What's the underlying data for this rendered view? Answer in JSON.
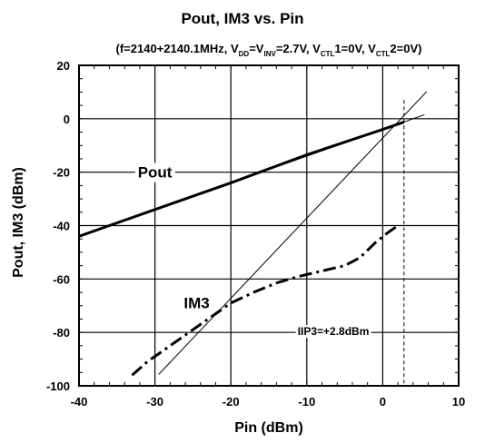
{
  "chart_data": {
    "type": "line",
    "title": "Pout, IM3 vs. Pin",
    "subtitle_parts": [
      {
        "text": "(f=2140+2140.1MHz, V",
        "sub": false
      },
      {
        "text": "DD",
        "sub": true
      },
      {
        "text": "=V",
        "sub": false
      },
      {
        "text": "INV",
        "sub": true
      },
      {
        "text": "=2.7V, V",
        "sub": false
      },
      {
        "text": "CTL",
        "sub": true
      },
      {
        "text": "1=0V, V",
        "sub": false
      },
      {
        "text": "CTL",
        "sub": true
      },
      {
        "text": "2=0V)",
        "sub": false
      }
    ],
    "xlabel": "Pin (dBm)",
    "ylabel": "Pout, IM3 (dBm)",
    "xlim": [
      -40,
      10
    ],
    "ylim": [
      -100,
      20
    ],
    "x_ticks": [
      -40,
      -30,
      -20,
      -10,
      0,
      10
    ],
    "y_ticks": [
      -100,
      -80,
      -60,
      -40,
      -20,
      0,
      20
    ],
    "grid": true,
    "series": [
      {
        "name": "Pout",
        "style": "solid-thick",
        "points": [
          [
            -40,
            -44
          ],
          [
            -30,
            -34
          ],
          [
            -20,
            -24
          ],
          [
            -10,
            -13.5
          ],
          [
            0,
            -4
          ],
          [
            2.8,
            -1.2
          ]
        ]
      },
      {
        "name": "IM3",
        "style": "dash-dot-thick",
        "points": [
          [
            -33,
            -96
          ],
          [
            -31,
            -91
          ],
          [
            -28,
            -85
          ],
          [
            -25,
            -79
          ],
          [
            -22,
            -73
          ],
          [
            -20,
            -69
          ],
          [
            -17,
            -65
          ],
          [
            -14,
            -61.5
          ],
          [
            -11,
            -59
          ],
          [
            -8,
            -57
          ],
          [
            -5,
            -55
          ],
          [
            -3,
            -52
          ],
          [
            -1,
            -46.5
          ],
          [
            0.5,
            -43
          ],
          [
            2,
            -40
          ]
        ]
      }
    ],
    "extrapolation_lines": [
      {
        "slope": 1,
        "x_range": [
          -40,
          5.5
        ],
        "points": [
          [
            -40,
            -44
          ],
          [
            5.5,
            1.5
          ]
        ]
      },
      {
        "slope": 3,
        "x_range": [
          -29.5,
          5.8
        ],
        "points": [
          [
            -29.5,
            -95.7
          ],
          [
            5.8,
            10.2
          ]
        ]
      }
    ],
    "iip3_marker": {
      "x": 2.8,
      "y_top": 7,
      "label": "IIP3=+2.8dBm",
      "label_pos": [
        -6.5,
        -81
      ]
    },
    "series_labels": [
      {
        "text": "Pout",
        "pos": [
          -30,
          -22
        ]
      },
      {
        "text": "IM3",
        "pos": [
          -24.5,
          -71
        ]
      }
    ]
  }
}
